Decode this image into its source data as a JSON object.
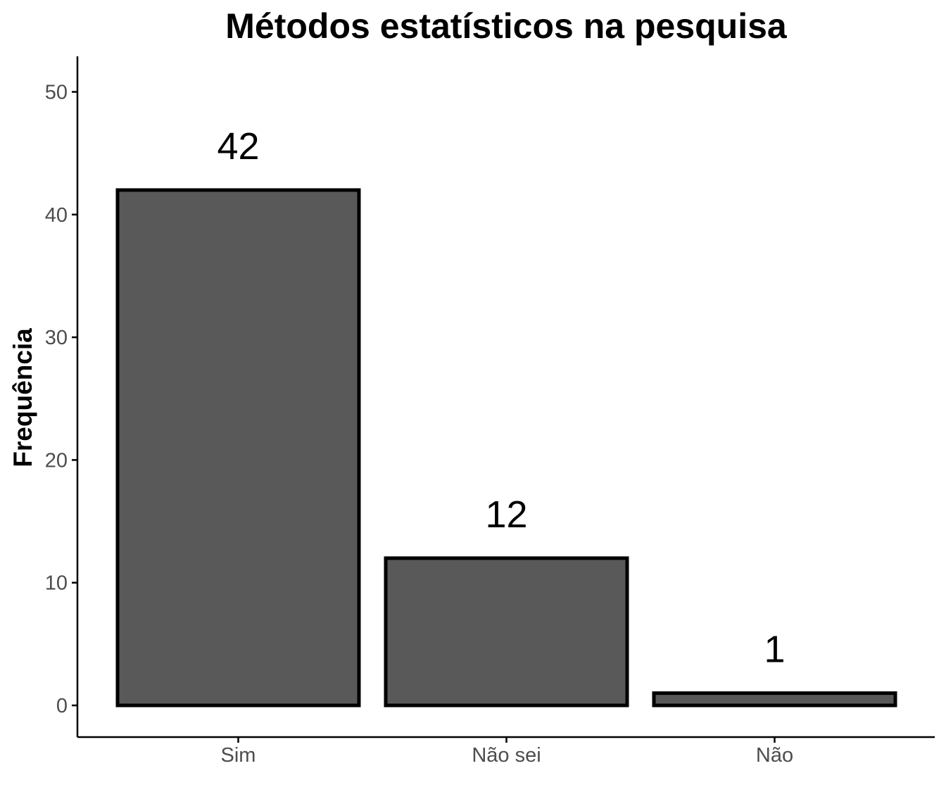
{
  "chart_data": {
    "type": "bar",
    "title": "Métodos estatísticos na pesquisa",
    "xlabel": "",
    "ylabel": "Frequência",
    "categories": [
      "Sim",
      "Não sei",
      "Não"
    ],
    "values": [
      42,
      12,
      1
    ],
    "data_labels": [
      "42",
      "12",
      "1"
    ],
    "ylim": [
      0,
      52
    ],
    "yticks": [
      0,
      10,
      20,
      30,
      40,
      50
    ],
    "grid": false,
    "legend": "none",
    "colors": {
      "bar_fill": "#595959",
      "bar_outline": "#000000",
      "axis": "#000000",
      "tick_text": "#4d4d4d"
    }
  }
}
